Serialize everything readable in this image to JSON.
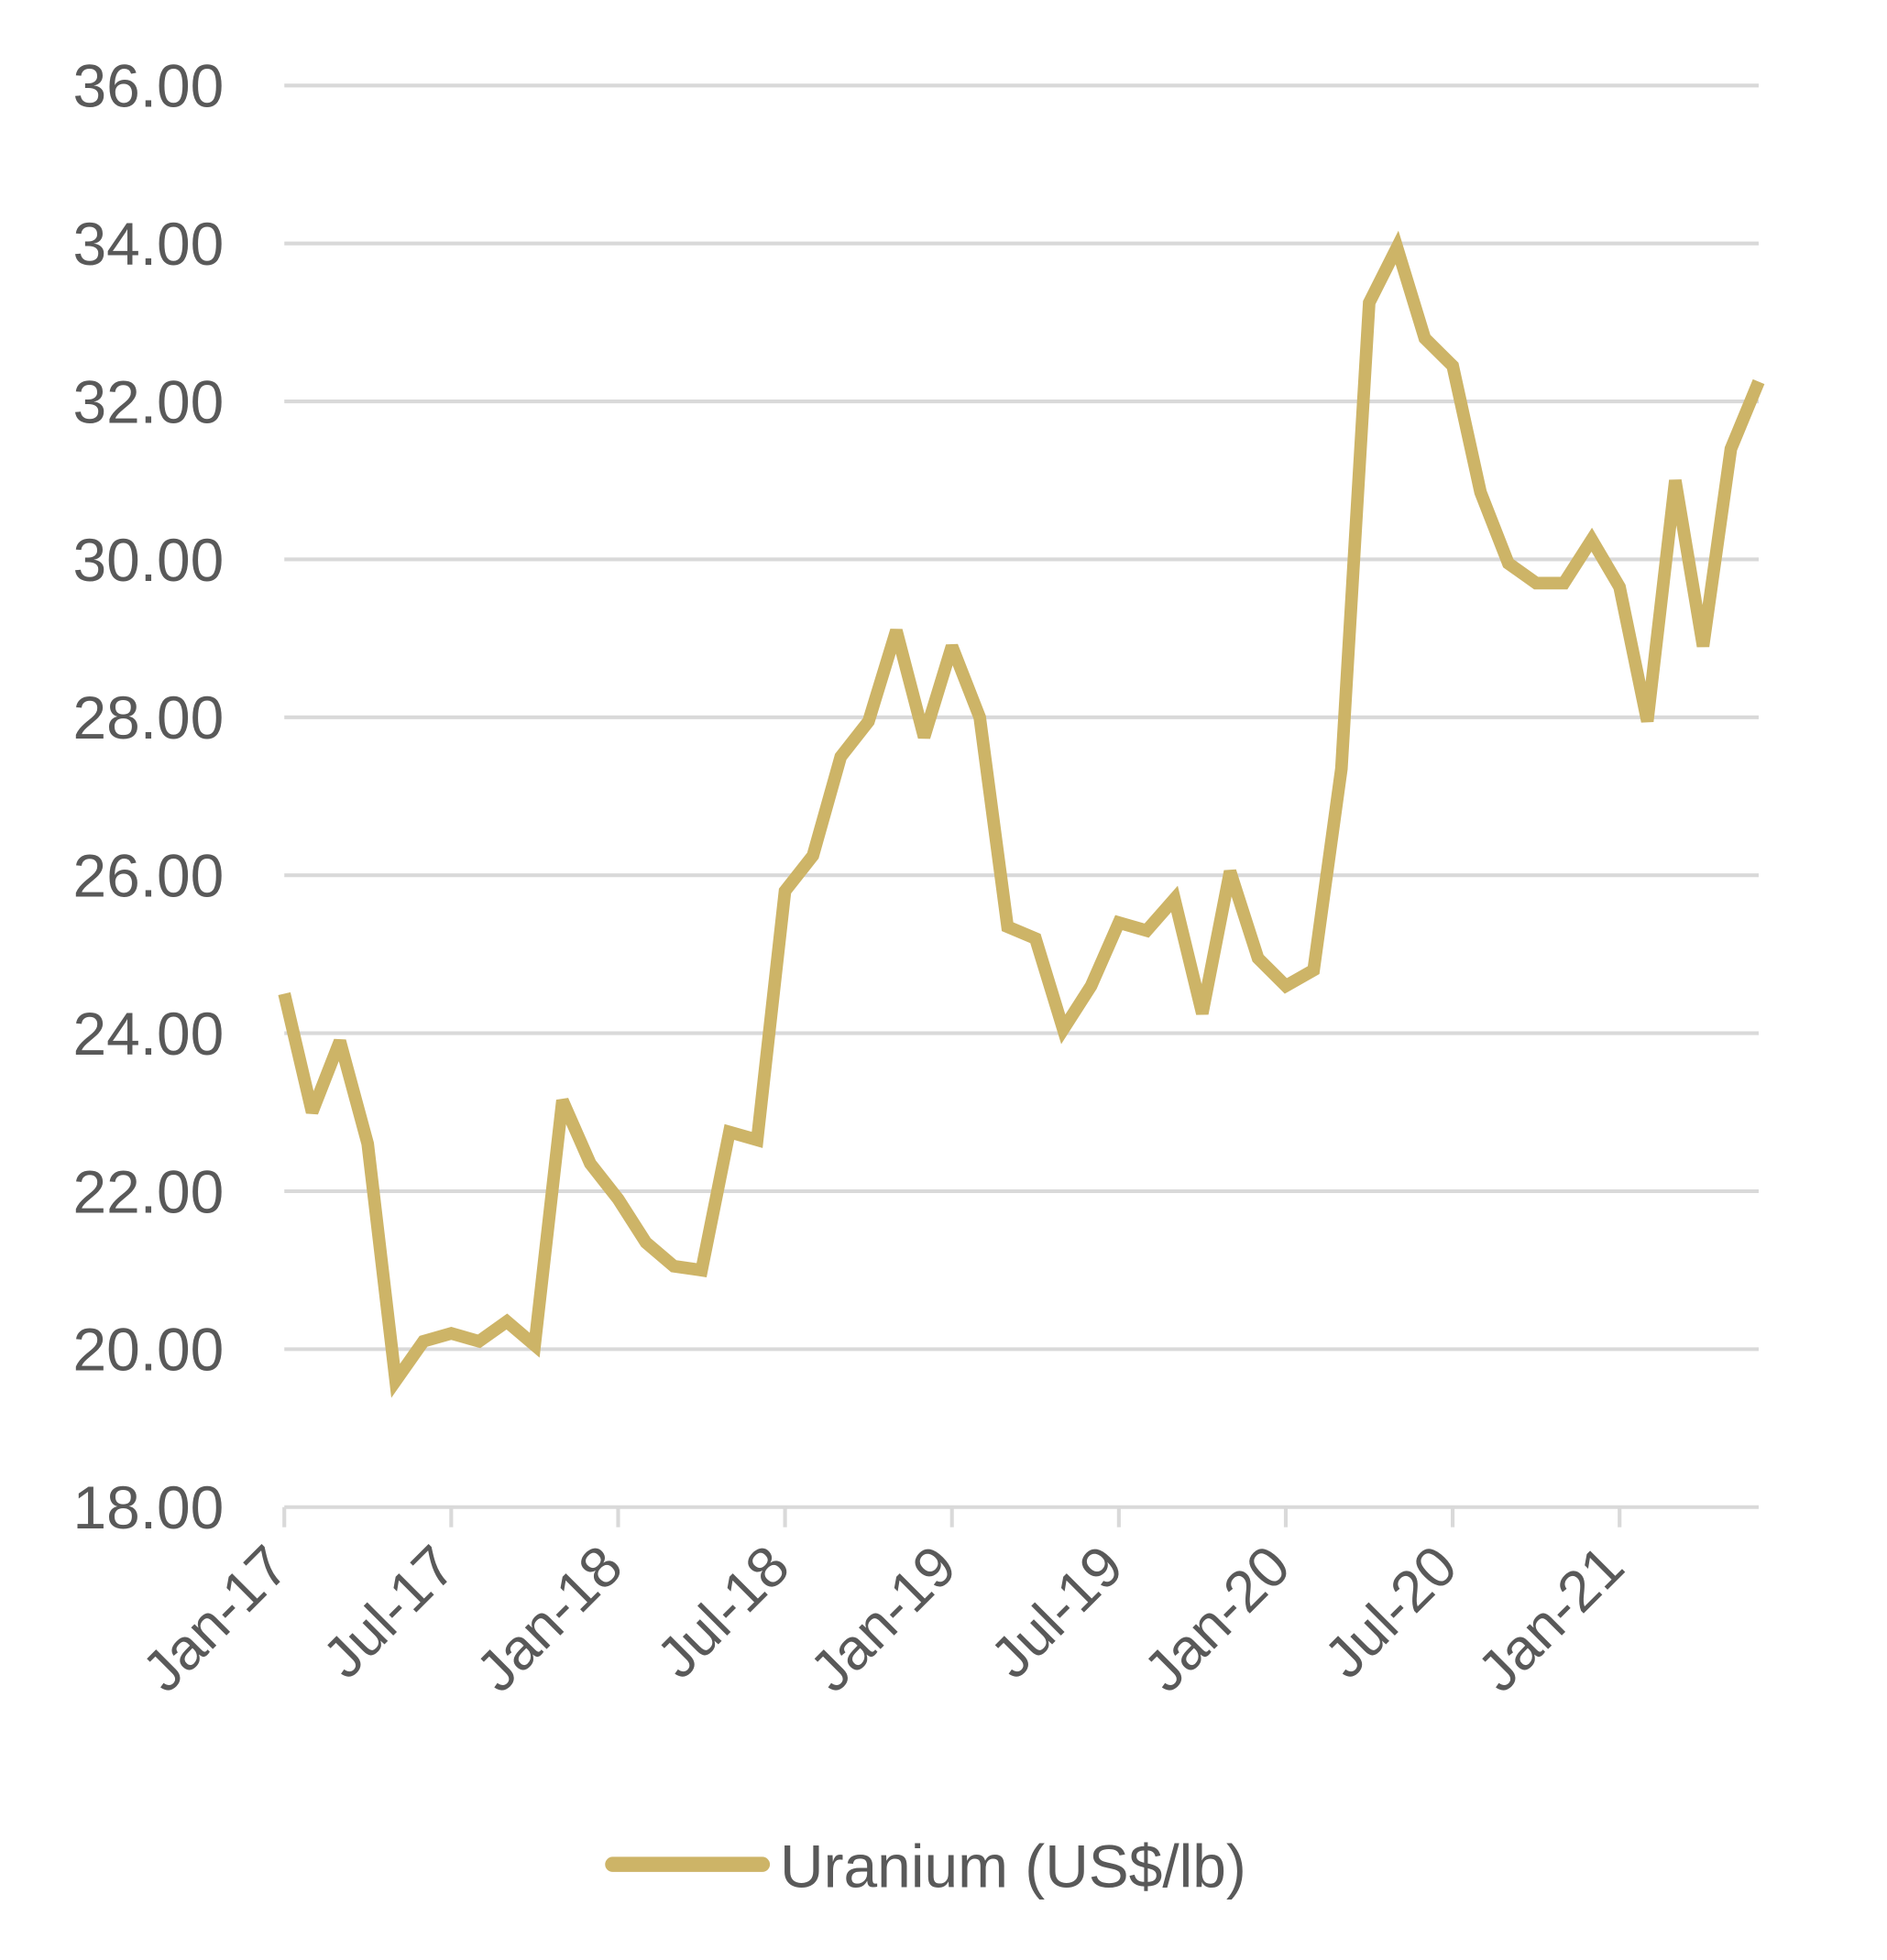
{
  "chart_data": {
    "type": "line",
    "title": "",
    "xlabel": "",
    "ylabel": "",
    "ylim": [
      18,
      36
    ],
    "yticks": [
      "18.00",
      "20.00",
      "22.00",
      "24.00",
      "26.00",
      "28.00",
      "30.00",
      "32.00",
      "34.00",
      "36.00"
    ],
    "xtick_labels": [
      "Jan-17",
      "Jul-17",
      "Jan-18",
      "Jul-18",
      "Jan-19",
      "Jul-19",
      "Jan-20",
      "Jul-20",
      "Jan-21"
    ],
    "x_start": "Jan-17",
    "x_end": "Jun-21",
    "x_frequency": "monthly",
    "grid": "horizontal",
    "legend_position": "bottom",
    "series": [
      {
        "name": "Uranium (US$/lb)",
        "color": "#CDB467",
        "values": [
          24.5,
          23.0,
          23.9,
          22.6,
          19.6,
          20.1,
          20.2,
          20.1,
          20.35,
          20.05,
          23.15,
          22.35,
          21.9,
          21.35,
          21.05,
          21.0,
          22.75,
          22.65,
          25.8,
          26.25,
          27.5,
          27.95,
          29.1,
          27.75,
          28.9,
          28.0,
          25.35,
          25.2,
          24.05,
          24.6,
          25.4,
          25.3,
          25.7,
          24.25,
          26.05,
          24.95,
          24.6,
          24.8,
          27.35,
          33.25,
          33.95,
          32.8,
          32.45,
          30.85,
          29.95,
          29.7,
          29.7,
          30.25,
          29.65,
          27.95,
          31.0,
          28.9,
          31.4,
          32.25
        ]
      }
    ]
  }
}
